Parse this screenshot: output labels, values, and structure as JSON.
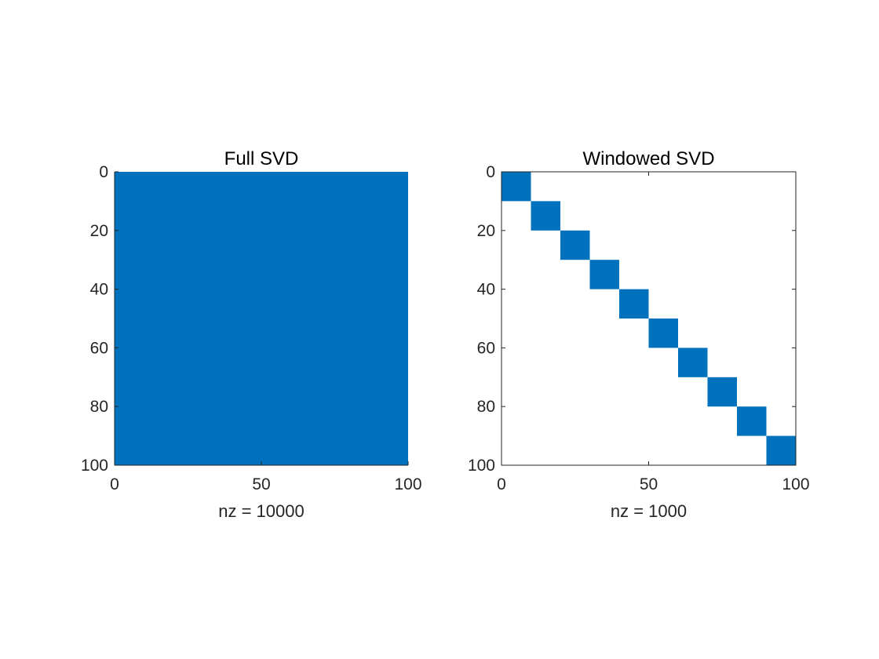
{
  "chart_data": [
    {
      "type": "heatmap",
      "subtype": "sparsity-pattern",
      "title": "Full SVD",
      "xlabel": "nz = 10000",
      "ylabel": "",
      "xlim": [
        0,
        100
      ],
      "ylim": [
        0,
        100
      ],
      "y_reversed": true,
      "xticks": [
        0,
        50,
        100
      ],
      "yticks": [
        0,
        20,
        40,
        60,
        80,
        100
      ],
      "xtick_labels": [
        "0",
        "50",
        "100"
      ],
      "ytick_labels": [
        "0",
        "20",
        "40",
        "60",
        "80",
        "100"
      ],
      "matrix_size": [
        100,
        100
      ],
      "nonzero_blocks": [
        {
          "row_start": 1,
          "row_end": 100,
          "col_start": 1,
          "col_end": 100
        }
      ],
      "color": "#0072BD",
      "box": false,
      "grid": false
    },
    {
      "type": "heatmap",
      "subtype": "sparsity-pattern",
      "title": "Windowed SVD",
      "xlabel": "nz = 1000",
      "ylabel": "",
      "xlim": [
        0,
        100
      ],
      "ylim": [
        0,
        100
      ],
      "y_reversed": true,
      "xticks": [
        0,
        50,
        100
      ],
      "yticks": [
        0,
        20,
        40,
        60,
        80,
        100
      ],
      "xtick_labels": [
        "0",
        "50",
        "100"
      ],
      "ytick_labels": [
        "0",
        "20",
        "40",
        "60",
        "80",
        "100"
      ],
      "matrix_size": [
        100,
        100
      ],
      "nonzero_blocks": [
        {
          "row_start": 1,
          "row_end": 10,
          "col_start": 1,
          "col_end": 10
        },
        {
          "row_start": 11,
          "row_end": 20,
          "col_start": 11,
          "col_end": 20
        },
        {
          "row_start": 21,
          "row_end": 30,
          "col_start": 21,
          "col_end": 30
        },
        {
          "row_start": 31,
          "row_end": 40,
          "col_start": 31,
          "col_end": 40
        },
        {
          "row_start": 41,
          "row_end": 50,
          "col_start": 41,
          "col_end": 50
        },
        {
          "row_start": 51,
          "row_end": 60,
          "col_start": 51,
          "col_end": 60
        },
        {
          "row_start": 61,
          "row_end": 70,
          "col_start": 61,
          "col_end": 70
        },
        {
          "row_start": 71,
          "row_end": 80,
          "col_start": 71,
          "col_end": 80
        },
        {
          "row_start": 81,
          "row_end": 90,
          "col_start": 81,
          "col_end": 90
        },
        {
          "row_start": 91,
          "row_end": 100,
          "col_start": 91,
          "col_end": 100
        }
      ],
      "color": "#0072BD",
      "box": true,
      "grid": false
    }
  ]
}
